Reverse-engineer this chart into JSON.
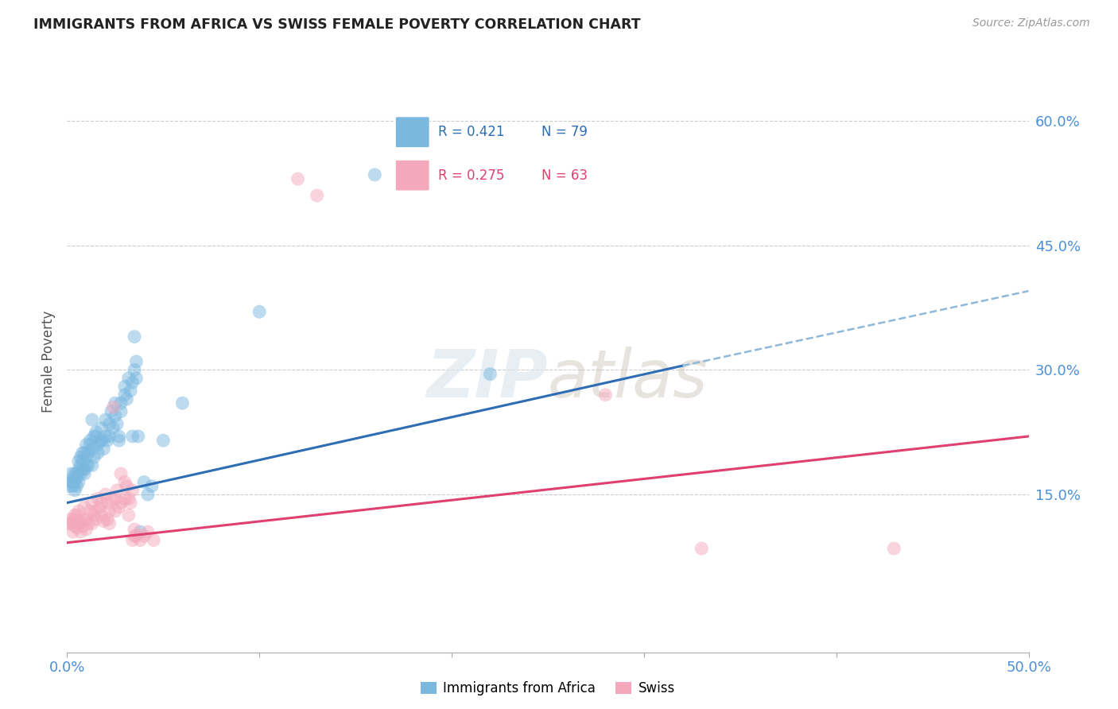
{
  "title": "IMMIGRANTS FROM AFRICA VS SWISS FEMALE POVERTY CORRELATION CHART",
  "source": "Source: ZipAtlas.com",
  "ylabel": "Female Poverty",
  "ytick_values": [
    0.15,
    0.3,
    0.45,
    0.6
  ],
  "xlim": [
    0.0,
    0.5
  ],
  "ylim": [
    -0.04,
    0.66
  ],
  "blue_color": "#7ab8e0",
  "pink_color": "#f4a8bc",
  "trendline_blue": "#2e6db4",
  "trendline_pink": "#e04070",
  "trendline_dashed_color": "#90b8d8",
  "axis_label_color": "#4a90d9",
  "title_color": "#222222",
  "grid_color": "#cccccc",
  "blue_scatter": [
    [
      0.001,
      0.16
    ],
    [
      0.002,
      0.175
    ],
    [
      0.002,
      0.165
    ],
    [
      0.003,
      0.16
    ],
    [
      0.003,
      0.17
    ],
    [
      0.003,
      0.165
    ],
    [
      0.004,
      0.165
    ],
    [
      0.004,
      0.155
    ],
    [
      0.004,
      0.175
    ],
    [
      0.005,
      0.17
    ],
    [
      0.005,
      0.175
    ],
    [
      0.005,
      0.16
    ],
    [
      0.006,
      0.165
    ],
    [
      0.006,
      0.18
    ],
    [
      0.006,
      0.19
    ],
    [
      0.007,
      0.185
    ],
    [
      0.007,
      0.175
    ],
    [
      0.007,
      0.195
    ],
    [
      0.008,
      0.19
    ],
    [
      0.008,
      0.2
    ],
    [
      0.008,
      0.18
    ],
    [
      0.009,
      0.18
    ],
    [
      0.009,
      0.175
    ],
    [
      0.009,
      0.2
    ],
    [
      0.01,
      0.195
    ],
    [
      0.01,
      0.21
    ],
    [
      0.01,
      0.185
    ],
    [
      0.011,
      0.2
    ],
    [
      0.011,
      0.185
    ],
    [
      0.012,
      0.21
    ],
    [
      0.012,
      0.215
    ],
    [
      0.013,
      0.205
    ],
    [
      0.013,
      0.185
    ],
    [
      0.013,
      0.24
    ],
    [
      0.014,
      0.22
    ],
    [
      0.014,
      0.195
    ],
    [
      0.015,
      0.225
    ],
    [
      0.015,
      0.22
    ],
    [
      0.016,
      0.21
    ],
    [
      0.016,
      0.2
    ],
    [
      0.017,
      0.215
    ],
    [
      0.018,
      0.23
    ],
    [
      0.018,
      0.215
    ],
    [
      0.019,
      0.205
    ],
    [
      0.02,
      0.24
    ],
    [
      0.02,
      0.22
    ],
    [
      0.021,
      0.215
    ],
    [
      0.022,
      0.235
    ],
    [
      0.022,
      0.22
    ],
    [
      0.023,
      0.25
    ],
    [
      0.024,
      0.23
    ],
    [
      0.025,
      0.26
    ],
    [
      0.025,
      0.245
    ],
    [
      0.026,
      0.235
    ],
    [
      0.027,
      0.22
    ],
    [
      0.027,
      0.215
    ],
    [
      0.028,
      0.25
    ],
    [
      0.028,
      0.26
    ],
    [
      0.03,
      0.28
    ],
    [
      0.03,
      0.27
    ],
    [
      0.031,
      0.265
    ],
    [
      0.032,
      0.29
    ],
    [
      0.033,
      0.275
    ],
    [
      0.034,
      0.285
    ],
    [
      0.034,
      0.22
    ],
    [
      0.035,
      0.3
    ],
    [
      0.035,
      0.34
    ],
    [
      0.036,
      0.29
    ],
    [
      0.036,
      0.31
    ],
    [
      0.037,
      0.22
    ],
    [
      0.038,
      0.105
    ],
    [
      0.04,
      0.165
    ],
    [
      0.042,
      0.15
    ],
    [
      0.044,
      0.16
    ],
    [
      0.05,
      0.215
    ],
    [
      0.06,
      0.26
    ],
    [
      0.1,
      0.37
    ],
    [
      0.16,
      0.535
    ],
    [
      0.22,
      0.295
    ]
  ],
  "pink_scatter": [
    [
      0.001,
      0.115
    ],
    [
      0.002,
      0.115
    ],
    [
      0.002,
      0.12
    ],
    [
      0.003,
      0.105
    ],
    [
      0.003,
      0.118
    ],
    [
      0.004,
      0.112
    ],
    [
      0.004,
      0.125
    ],
    [
      0.005,
      0.11
    ],
    [
      0.005,
      0.125
    ],
    [
      0.006,
      0.13
    ],
    [
      0.006,
      0.115
    ],
    [
      0.007,
      0.105
    ],
    [
      0.007,
      0.118
    ],
    [
      0.008,
      0.112
    ],
    [
      0.009,
      0.135
    ],
    [
      0.009,
      0.12
    ],
    [
      0.01,
      0.12
    ],
    [
      0.01,
      0.108
    ],
    [
      0.011,
      0.115
    ],
    [
      0.012,
      0.13
    ],
    [
      0.013,
      0.14
    ],
    [
      0.013,
      0.115
    ],
    [
      0.014,
      0.125
    ],
    [
      0.015,
      0.12
    ],
    [
      0.015,
      0.13
    ],
    [
      0.016,
      0.145
    ],
    [
      0.017,
      0.135
    ],
    [
      0.018,
      0.14
    ],
    [
      0.018,
      0.125
    ],
    [
      0.019,
      0.118
    ],
    [
      0.02,
      0.15
    ],
    [
      0.021,
      0.14
    ],
    [
      0.021,
      0.12
    ],
    [
      0.022,
      0.13
    ],
    [
      0.022,
      0.115
    ],
    [
      0.023,
      0.145
    ],
    [
      0.024,
      0.255
    ],
    [
      0.025,
      0.145
    ],
    [
      0.025,
      0.13
    ],
    [
      0.026,
      0.155
    ],
    [
      0.027,
      0.135
    ],
    [
      0.028,
      0.175
    ],
    [
      0.028,
      0.14
    ],
    [
      0.03,
      0.165
    ],
    [
      0.03,
      0.145
    ],
    [
      0.031,
      0.16
    ],
    [
      0.032,
      0.145
    ],
    [
      0.032,
      0.125
    ],
    [
      0.033,
      0.14
    ],
    [
      0.034,
      0.155
    ],
    [
      0.034,
      0.095
    ],
    [
      0.035,
      0.1
    ],
    [
      0.035,
      0.108
    ],
    [
      0.036,
      0.1
    ],
    [
      0.038,
      0.095
    ],
    [
      0.04,
      0.1
    ],
    [
      0.042,
      0.105
    ],
    [
      0.045,
      0.095
    ],
    [
      0.12,
      0.53
    ],
    [
      0.13,
      0.51
    ],
    [
      0.28,
      0.27
    ],
    [
      0.33,
      0.085
    ],
    [
      0.43,
      0.085
    ]
  ],
  "trendline_blue_x0": 0.0,
  "trendline_blue_y0": 0.14,
  "trendline_blue_x1": 0.32,
  "trendline_blue_y1": 0.305,
  "trendline_dash_x0": 0.32,
  "trendline_dash_y0": 0.305,
  "trendline_dash_x1": 0.5,
  "trendline_dash_y1": 0.395,
  "trendline_pink_x0": 0.0,
  "trendline_pink_y0": 0.092,
  "trendline_pink_x1": 0.5,
  "trendline_pink_y1": 0.22
}
